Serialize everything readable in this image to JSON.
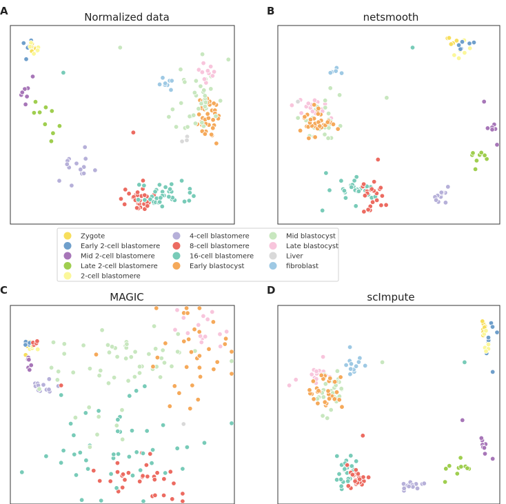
{
  "legend": {
    "entries": [
      {
        "label": "Zygote",
        "color": "#f7de5c"
      },
      {
        "label": "Early 2-cell blastomere",
        "color": "#6f9fcb"
      },
      {
        "label": "Mid 2-cell blastomere",
        "color": "#a776b8"
      },
      {
        "label": "Late 2-cell blastomere",
        "color": "#9fce4f"
      },
      {
        "label": "2-cell blastomere",
        "color": "#fbf79a"
      },
      {
        "label": "4-cell blastomere",
        "color": "#b6b0d9"
      },
      {
        "label": "8-cell blastomere",
        "color": "#ec6b61"
      },
      {
        "label": "16-cell blastomere",
        "color": "#78cbb8"
      },
      {
        "label": "Early blastocyst",
        "color": "#f5a95a"
      },
      {
        "label": "Mid blastocyst",
        "color": "#c8e7bf"
      },
      {
        "label": "Late blastocyst",
        "color": "#f8c5dc"
      },
      {
        "label": "Liver",
        "color": "#d9d9d9"
      },
      {
        "label": "fibroblast",
        "color": "#9ec9e4"
      }
    ]
  },
  "chart_data": [
    {
      "letter": "A",
      "title": "Normalized data",
      "type": "scatter",
      "xlim": [
        0,
        100
      ],
      "ylim": [
        0,
        100
      ],
      "clusters": [
        {
          "cls": 0,
          "cx": 9,
          "cy": 91,
          "sx": 1.2,
          "sy": 2.5,
          "n": 7
        },
        {
          "cls": 1,
          "cx": 7,
          "cy": 92,
          "sx": 1.5,
          "sy": 1.5,
          "n": 4
        },
        {
          "cls": 4,
          "cx": 10,
          "cy": 90,
          "sx": 1.2,
          "sy": 2.0,
          "n": 5
        },
        {
          "cls": 2,
          "cx": 6,
          "cy": 65,
          "sx": 1.0,
          "sy": 3.5,
          "n": 6
        },
        {
          "cls": 3,
          "cx": 14,
          "cy": 54,
          "sx": 3.5,
          "sy": 5.0,
          "n": 9
        },
        {
          "cls": 5,
          "cx": 29,
          "cy": 28,
          "sx": 4.5,
          "sy": 5.0,
          "n": 14
        },
        {
          "cls": 6,
          "cx": 57,
          "cy": 12,
          "sx": 4.0,
          "sy": 4.0,
          "n": 30
        },
        {
          "cls": 7,
          "cx": 67,
          "cy": 13,
          "sx": 6.0,
          "sy": 3.0,
          "n": 35
        },
        {
          "cls": 8,
          "cx": 88,
          "cy": 55,
          "sx": 3.5,
          "sy": 6.0,
          "n": 38
        },
        {
          "cls": 9,
          "cx": 85,
          "cy": 62,
          "sx": 5.0,
          "sy": 9.0,
          "n": 35
        },
        {
          "cls": 10,
          "cx": 89,
          "cy": 77,
          "sx": 2.5,
          "sy": 3.0,
          "n": 12
        },
        {
          "cls": 12,
          "cx": 71,
          "cy": 72,
          "sx": 2.0,
          "sy": 2.0,
          "n": 8
        },
        {
          "cls": 11,
          "cx": 80,
          "cy": 42,
          "sx": 1.5,
          "sy": 2.0,
          "n": 3
        }
      ],
      "extras": [
        [
          49,
          90,
          9
        ],
        [
          23,
          77,
          7
        ],
        [
          6,
          84,
          1
        ],
        [
          9,
          75,
          2
        ],
        [
          55,
          46,
          6
        ],
        [
          73,
          58,
          9
        ]
      ]
    },
    {
      "letter": "B",
      "title": "netsmooth",
      "type": "scatter",
      "xlim": [
        0,
        100
      ],
      "ylim": [
        0,
        100
      ],
      "clusters": [
        {
          "cls": 10,
          "cx": 13,
          "cy": 59,
          "sx": 4.5,
          "sy": 3.5,
          "n": 18
        },
        {
          "cls": 9,
          "cx": 19,
          "cy": 51,
          "sx": 5.0,
          "sy": 6.0,
          "n": 25
        },
        {
          "cls": 8,
          "cx": 16,
          "cy": 50,
          "sx": 4.0,
          "sy": 3.5,
          "n": 32
        },
        {
          "cls": 7,
          "cx": 34,
          "cy": 15,
          "sx": 4.5,
          "sy": 3.5,
          "n": 30
        },
        {
          "cls": 6,
          "cx": 42,
          "cy": 13,
          "sx": 3.0,
          "sy": 3.5,
          "n": 22
        },
        {
          "cls": 5,
          "cx": 72,
          "cy": 14,
          "sx": 3.5,
          "sy": 2.0,
          "n": 12
        },
        {
          "cls": 0,
          "cx": 80,
          "cy": 93,
          "sx": 2.5,
          "sy": 1.5,
          "n": 6
        },
        {
          "cls": 4,
          "cx": 85,
          "cy": 86,
          "sx": 3.0,
          "sy": 3.0,
          "n": 6
        },
        {
          "cls": 1,
          "cx": 85,
          "cy": 91,
          "sx": 3.0,
          "sy": 2.0,
          "n": 6
        },
        {
          "cls": 2,
          "cx": 98,
          "cy": 48,
          "sx": 1.0,
          "sy": 4.0,
          "n": 6
        },
        {
          "cls": 3,
          "cx": 92,
          "cy": 35,
          "sx": 2.5,
          "sy": 2.5,
          "n": 7
        },
        {
          "cls": 12,
          "cx": 25,
          "cy": 77,
          "sx": 2.0,
          "sy": 1.0,
          "n": 5
        }
      ],
      "extras": [
        [
          61,
          90,
          7
        ],
        [
          49,
          64,
          9
        ],
        [
          45,
          32,
          6
        ],
        [
          21,
          25,
          7
        ],
        [
          94,
          62,
          2
        ],
        [
          90,
          27,
          3
        ],
        [
          23,
          69,
          9
        ],
        [
          8,
          62,
          11
        ]
      ]
    },
    {
      "letter": "C",
      "title": "MAGIC",
      "type": "scatter",
      "xlim": [
        0,
        100
      ],
      "ylim": [
        0,
        100
      ],
      "clusters": [
        {
          "cls": 0,
          "cx": 8,
          "cy": 81,
          "sx": 1.5,
          "sy": 1.5,
          "n": 5
        },
        {
          "cls": 1,
          "cx": 7,
          "cy": 82,
          "sx": 1.5,
          "sy": 1.0,
          "n": 4
        },
        {
          "cls": 4,
          "cx": 9,
          "cy": 80,
          "sx": 1.5,
          "sy": 1.5,
          "n": 4
        },
        {
          "cls": 6,
          "cx": 10,
          "cy": 82,
          "sx": 1.5,
          "sy": 1.0,
          "n": 5
        },
        {
          "cls": 2,
          "cx": 8,
          "cy": 72,
          "sx": 1.0,
          "sy": 2.0,
          "n": 6
        },
        {
          "cls": 5,
          "cx": 14,
          "cy": 60,
          "sx": 3.0,
          "sy": 3.0,
          "n": 12
        },
        {
          "cls": 6,
          "cx": 58,
          "cy": 12,
          "sx": 12.0,
          "sy": 7.0,
          "n": 30
        },
        {
          "cls": 7,
          "cx": 48,
          "cy": 25,
          "sx": 18.0,
          "sy": 14.0,
          "n": 45
        },
        {
          "cls": 9,
          "cx": 55,
          "cy": 76,
          "sx": 20.0,
          "sy": 7.0,
          "n": 45
        },
        {
          "cls": 8,
          "cx": 80,
          "cy": 78,
          "sx": 9.0,
          "sy": 12.0,
          "n": 30
        },
        {
          "cls": 10,
          "cx": 88,
          "cy": 89,
          "sx": 5.0,
          "sy": 6.0,
          "n": 15
        },
        {
          "cls": 9,
          "cx": 45,
          "cy": 45,
          "sx": 10.0,
          "sy": 8.0,
          "n": 10
        }
      ],
      "extras": [
        [
          22,
          60,
          6
        ],
        [
          22,
          55,
          7
        ],
        [
          38,
          76,
          8
        ],
        [
          76,
          56,
          8
        ],
        [
          78,
          40,
          11
        ],
        [
          81,
          48,
          8
        ],
        [
          82,
          60,
          8
        ]
      ]
    },
    {
      "letter": "D",
      "title": "scImpute",
      "type": "scatter",
      "xlim": [
        0,
        100
      ],
      "ylim": [
        0,
        100
      ],
      "clusters": [
        {
          "cls": 10,
          "cx": 18,
          "cy": 66,
          "sx": 4.0,
          "sy": 3.0,
          "n": 15
        },
        {
          "cls": 9,
          "cx": 23,
          "cy": 57,
          "sx": 4.0,
          "sy": 6.0,
          "n": 30
        },
        {
          "cls": 8,
          "cx": 21,
          "cy": 55,
          "sx": 3.5,
          "sy": 5.0,
          "n": 30
        },
        {
          "cls": 12,
          "cx": 33,
          "cy": 71,
          "sx": 2.5,
          "sy": 3.0,
          "n": 12
        },
        {
          "cls": 7,
          "cx": 31,
          "cy": 18,
          "sx": 3.0,
          "sy": 5.0,
          "n": 28
        },
        {
          "cls": 6,
          "cx": 35,
          "cy": 13,
          "sx": 2.5,
          "sy": 3.0,
          "n": 22
        },
        {
          "cls": 5,
          "cx": 58,
          "cy": 8,
          "sx": 4.0,
          "sy": 1.5,
          "n": 14
        },
        {
          "cls": 0,
          "cx": 94,
          "cy": 89,
          "sx": 0.8,
          "sy": 3.5,
          "n": 7
        },
        {
          "cls": 1,
          "cx": 96,
          "cy": 86,
          "sx": 1.5,
          "sy": 4.0,
          "n": 7
        },
        {
          "cls": 4,
          "cx": 95,
          "cy": 80,
          "sx": 1.0,
          "sy": 5.0,
          "n": 6
        },
        {
          "cls": 2,
          "cx": 94,
          "cy": 30,
          "sx": 1.0,
          "sy": 4.0,
          "n": 7
        },
        {
          "cls": 3,
          "cx": 83,
          "cy": 18,
          "sx": 3.5,
          "sy": 2.0,
          "n": 9
        }
      ],
      "extras": [
        [
          47,
          72,
          9
        ],
        [
          85,
          72,
          7
        ],
        [
          98,
          67,
          1
        ],
        [
          4,
          60,
          10
        ],
        [
          38,
          34,
          6
        ],
        [
          98,
          22,
          2
        ],
        [
          76,
          10,
          3
        ],
        [
          84,
          42,
          2
        ]
      ]
    }
  ]
}
